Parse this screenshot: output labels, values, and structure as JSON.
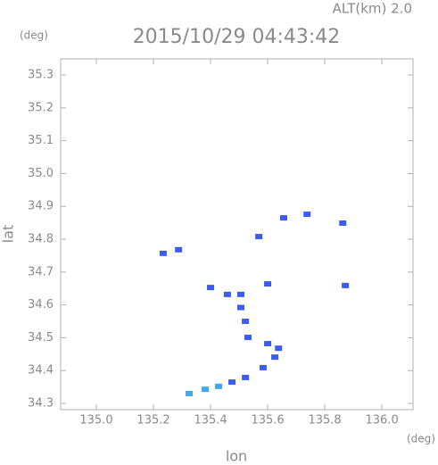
{
  "chart_data": {
    "type": "scatter",
    "title": "2015/10/29 04:43:42",
    "subtitle": "ALT(km) 2.0",
    "y_unit": "(deg)",
    "x_unit": "(deg)",
    "x_label": "lon",
    "y_label": "lat",
    "xlim": [
      134.875,
      136.109
    ],
    "ylim": [
      34.281,
      35.349
    ],
    "xticks": [
      {
        "value": 135.0,
        "label": "135.0"
      },
      135.2,
      135.4,
      135.6,
      135.8,
      {
        "value": 136.0,
        "label": "136.0"
      }
    ],
    "yticks": [
      34.3,
      34.4,
      34.5,
      34.6,
      34.7,
      34.8,
      34.9,
      {
        "value": 35.0,
        "label": "35.0"
      },
      35.1,
      35.2,
      35.3
    ],
    "series": [
      {
        "color": "#3a5cf0",
        "x": [
          135.234,
          135.288,
          135.569,
          135.656,
          135.738,
          135.863,
          135.872,
          135.4,
          135.459,
          135.506,
          135.6,
          135.522,
          135.531,
          135.6,
          135.625,
          135.584,
          135.522,
          135.475,
          135.506,
          135.638
        ],
        "y": [
          34.757,
          34.768,
          34.808,
          34.865,
          34.876,
          34.849,
          34.659,
          34.653,
          34.632,
          34.632,
          34.664,
          34.55,
          34.501,
          34.482,
          34.441,
          34.409,
          34.379,
          34.365,
          34.592,
          34.468
        ]
      },
      {
        "color": "#40a8f0",
        "x": [
          135.428,
          135.381,
          135.325
        ],
        "y": [
          34.352,
          34.343,
          34.33
        ]
      }
    ]
  }
}
